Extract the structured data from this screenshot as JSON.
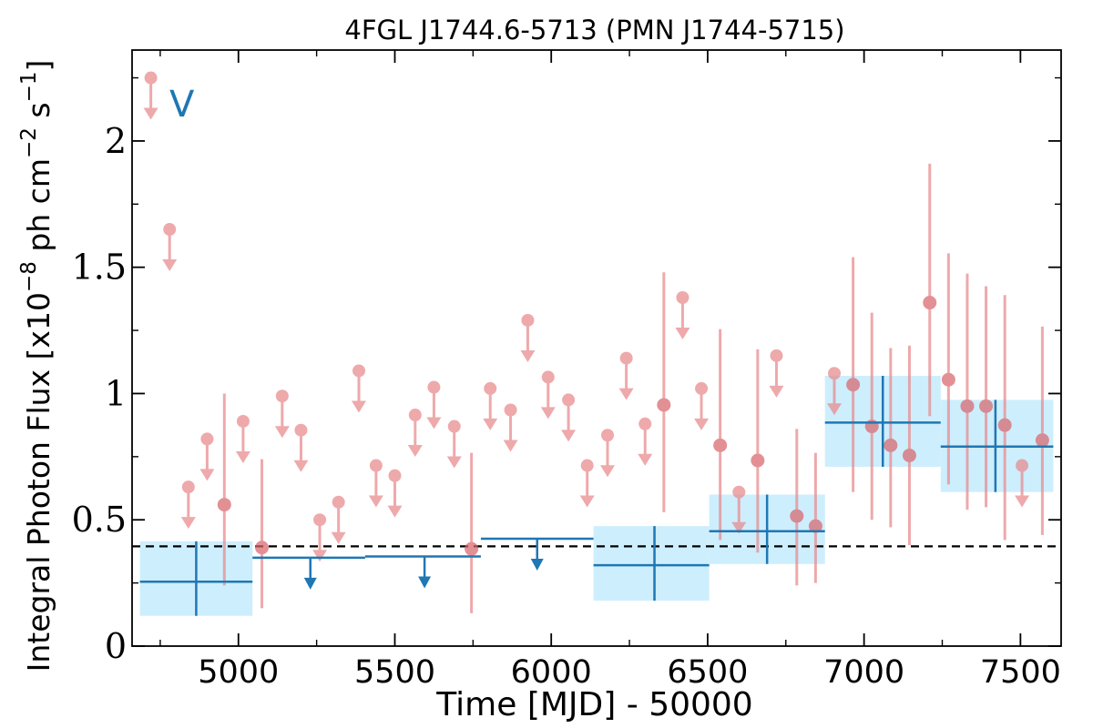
{
  "chart_data": {
    "type": "scatter",
    "title": "4FGL J1744.6-5713 (PMN J1744-5715)",
    "xlabel": "Time [MJD] - 50000",
    "ylabel": "Integral Photon Flux [x10",
    "ylabel_exp": "−8",
    "ylabel_mid": " ph cm",
    "ylabel_exp2": "−2",
    "ylabel_mid2": " s",
    "ylabel_exp3": "−1",
    "ylabel_end": "]",
    "band_label": "V",
    "xlim": [
      4660,
      7630
    ],
    "ylim": [
      0,
      2.36
    ],
    "xticks": [
      5000,
      5500,
      6000,
      6500,
      7000,
      7500
    ],
    "xtick_labels": [
      "5000",
      "5500",
      "6000",
      "6500",
      "7000",
      "7500"
    ],
    "yticks": [
      0,
      0.5,
      1,
      1.5,
      2
    ],
    "ytick_labels": [
      "0",
      "0.5",
      "1",
      "1.5",
      "2"
    ],
    "reference_line_y": 0.395,
    "colors": {
      "short_bin": "#e8898c",
      "long_bin": "#1f77b4",
      "band_fill": "#cdeefd",
      "reference_line": "#000000"
    },
    "series": [
      {
        "type": "upper_limits",
        "values": [
          {
            "x": 4720,
            "y": 2.25
          },
          {
            "x": 4780,
            "y": 1.65
          },
          {
            "x": 4840,
            "y": 0.63
          },
          {
            "x": 4900,
            "y": 0.82
          },
          {
            "x": 5015,
            "y": 0.89
          },
          {
            "x": 5140,
            "y": 0.99
          },
          {
            "x": 5200,
            "y": 0.855
          },
          {
            "x": 5260,
            "y": 0.5
          },
          {
            "x": 5320,
            "y": 0.57
          },
          {
            "x": 5385,
            "y": 1.09
          },
          {
            "x": 5440,
            "y": 0.715
          },
          {
            "x": 5500,
            "y": 0.675
          },
          {
            "x": 5565,
            "y": 0.915
          },
          {
            "x": 5625,
            "y": 1.025
          },
          {
            "x": 5690,
            "y": 0.87
          },
          {
            "x": 5805,
            "y": 1.02
          },
          {
            "x": 5870,
            "y": 0.935
          },
          {
            "x": 5925,
            "y": 1.29
          },
          {
            "x": 5990,
            "y": 1.065
          },
          {
            "x": 6055,
            "y": 0.975
          },
          {
            "x": 6115,
            "y": 0.715
          },
          {
            "x": 6180,
            "y": 0.835
          },
          {
            "x": 6240,
            "y": 1.14
          },
          {
            "x": 6300,
            "y": 0.88
          },
          {
            "x": 6420,
            "y": 1.38
          },
          {
            "x": 6480,
            "y": 1.02
          },
          {
            "x": 6600,
            "y": 0.61
          },
          {
            "x": 6720,
            "y": 1.15
          },
          {
            "x": 6905,
            "y": 1.08
          },
          {
            "x": 7505,
            "y": 0.715
          }
        ]
      },
      {
        "type": "detections",
        "values": [
          {
            "x": 4955,
            "y": 0.56,
            "y_low": 0.24,
            "y_high": 1.0
          },
          {
            "x": 5075,
            "y": 0.39,
            "y_low": 0.15,
            "y_high": 0.74
          },
          {
            "x": 5745,
            "y": 0.385,
            "y_low": 0.13,
            "y_high": 0.765
          },
          {
            "x": 6360,
            "y": 0.955,
            "y_low": 0.53,
            "y_high": 1.48
          },
          {
            "x": 6540,
            "y": 0.795,
            "y_low": 0.42,
            "y_high": 1.255
          },
          {
            "x": 6660,
            "y": 0.735,
            "y_low": 0.37,
            "y_high": 1.175
          },
          {
            "x": 6785,
            "y": 0.515,
            "y_low": 0.24,
            "y_high": 0.86
          },
          {
            "x": 6845,
            "y": 0.475,
            "y_low": 0.25,
            "y_high": 0.765
          },
          {
            "x": 6965,
            "y": 1.035,
            "y_low": 0.61,
            "y_high": 1.54
          },
          {
            "x": 7025,
            "y": 0.87,
            "y_low": 0.5,
            "y_high": 1.32
          },
          {
            "x": 7085,
            "y": 0.795,
            "y_low": 0.47,
            "y_high": 1.18
          },
          {
            "x": 7145,
            "y": 0.755,
            "y_low": 0.4,
            "y_high": 1.19
          },
          {
            "x": 7210,
            "y": 1.36,
            "y_low": 0.91,
            "y_high": 1.91
          },
          {
            "x": 7270,
            "y": 1.055,
            "y_low": 0.64,
            "y_high": 1.555
          },
          {
            "x": 7330,
            "y": 0.95,
            "y_low": 0.54,
            "y_high": 1.475
          },
          {
            "x": 7390,
            "y": 0.95,
            "y_low": 0.55,
            "y_high": 1.425
          },
          {
            "x": 7450,
            "y": 0.875,
            "y_low": 0.42,
            "y_high": 1.39
          },
          {
            "x": 7570,
            "y": 0.815,
            "y_low": 0.44,
            "y_high": 1.265
          }
        ]
      },
      {
        "type": "long_bin_detections",
        "values": [
          {
            "x": 4865,
            "x_low": 4685,
            "x_high": 5045,
            "y": 0.255,
            "y_low": 0.12,
            "y_high": 0.415
          },
          {
            "x": 6330,
            "x_low": 6135,
            "x_high": 6505,
            "y": 0.32,
            "y_low": 0.18,
            "y_high": 0.475
          },
          {
            "x": 6690,
            "x_low": 6505,
            "x_high": 6875,
            "y": 0.455,
            "y_low": 0.325,
            "y_high": 0.6
          },
          {
            "x": 7060,
            "x_low": 6875,
            "x_high": 7245,
            "y": 0.885,
            "y_low": 0.71,
            "y_high": 1.07
          },
          {
            "x": 7420,
            "x_low": 7245,
            "x_high": 7605,
            "y": 0.79,
            "y_low": 0.61,
            "y_high": 0.975
          }
        ]
      },
      {
        "type": "long_bin_upper_limits",
        "values": [
          {
            "x": 5230,
            "x_low": 5045,
            "x_high": 5405,
            "y": 0.35
          },
          {
            "x": 5595,
            "x_low": 5405,
            "x_high": 5775,
            "y": 0.355
          },
          {
            "x": 5955,
            "x_low": 5775,
            "x_high": 6135,
            "y": 0.425
          }
        ]
      }
    ]
  }
}
